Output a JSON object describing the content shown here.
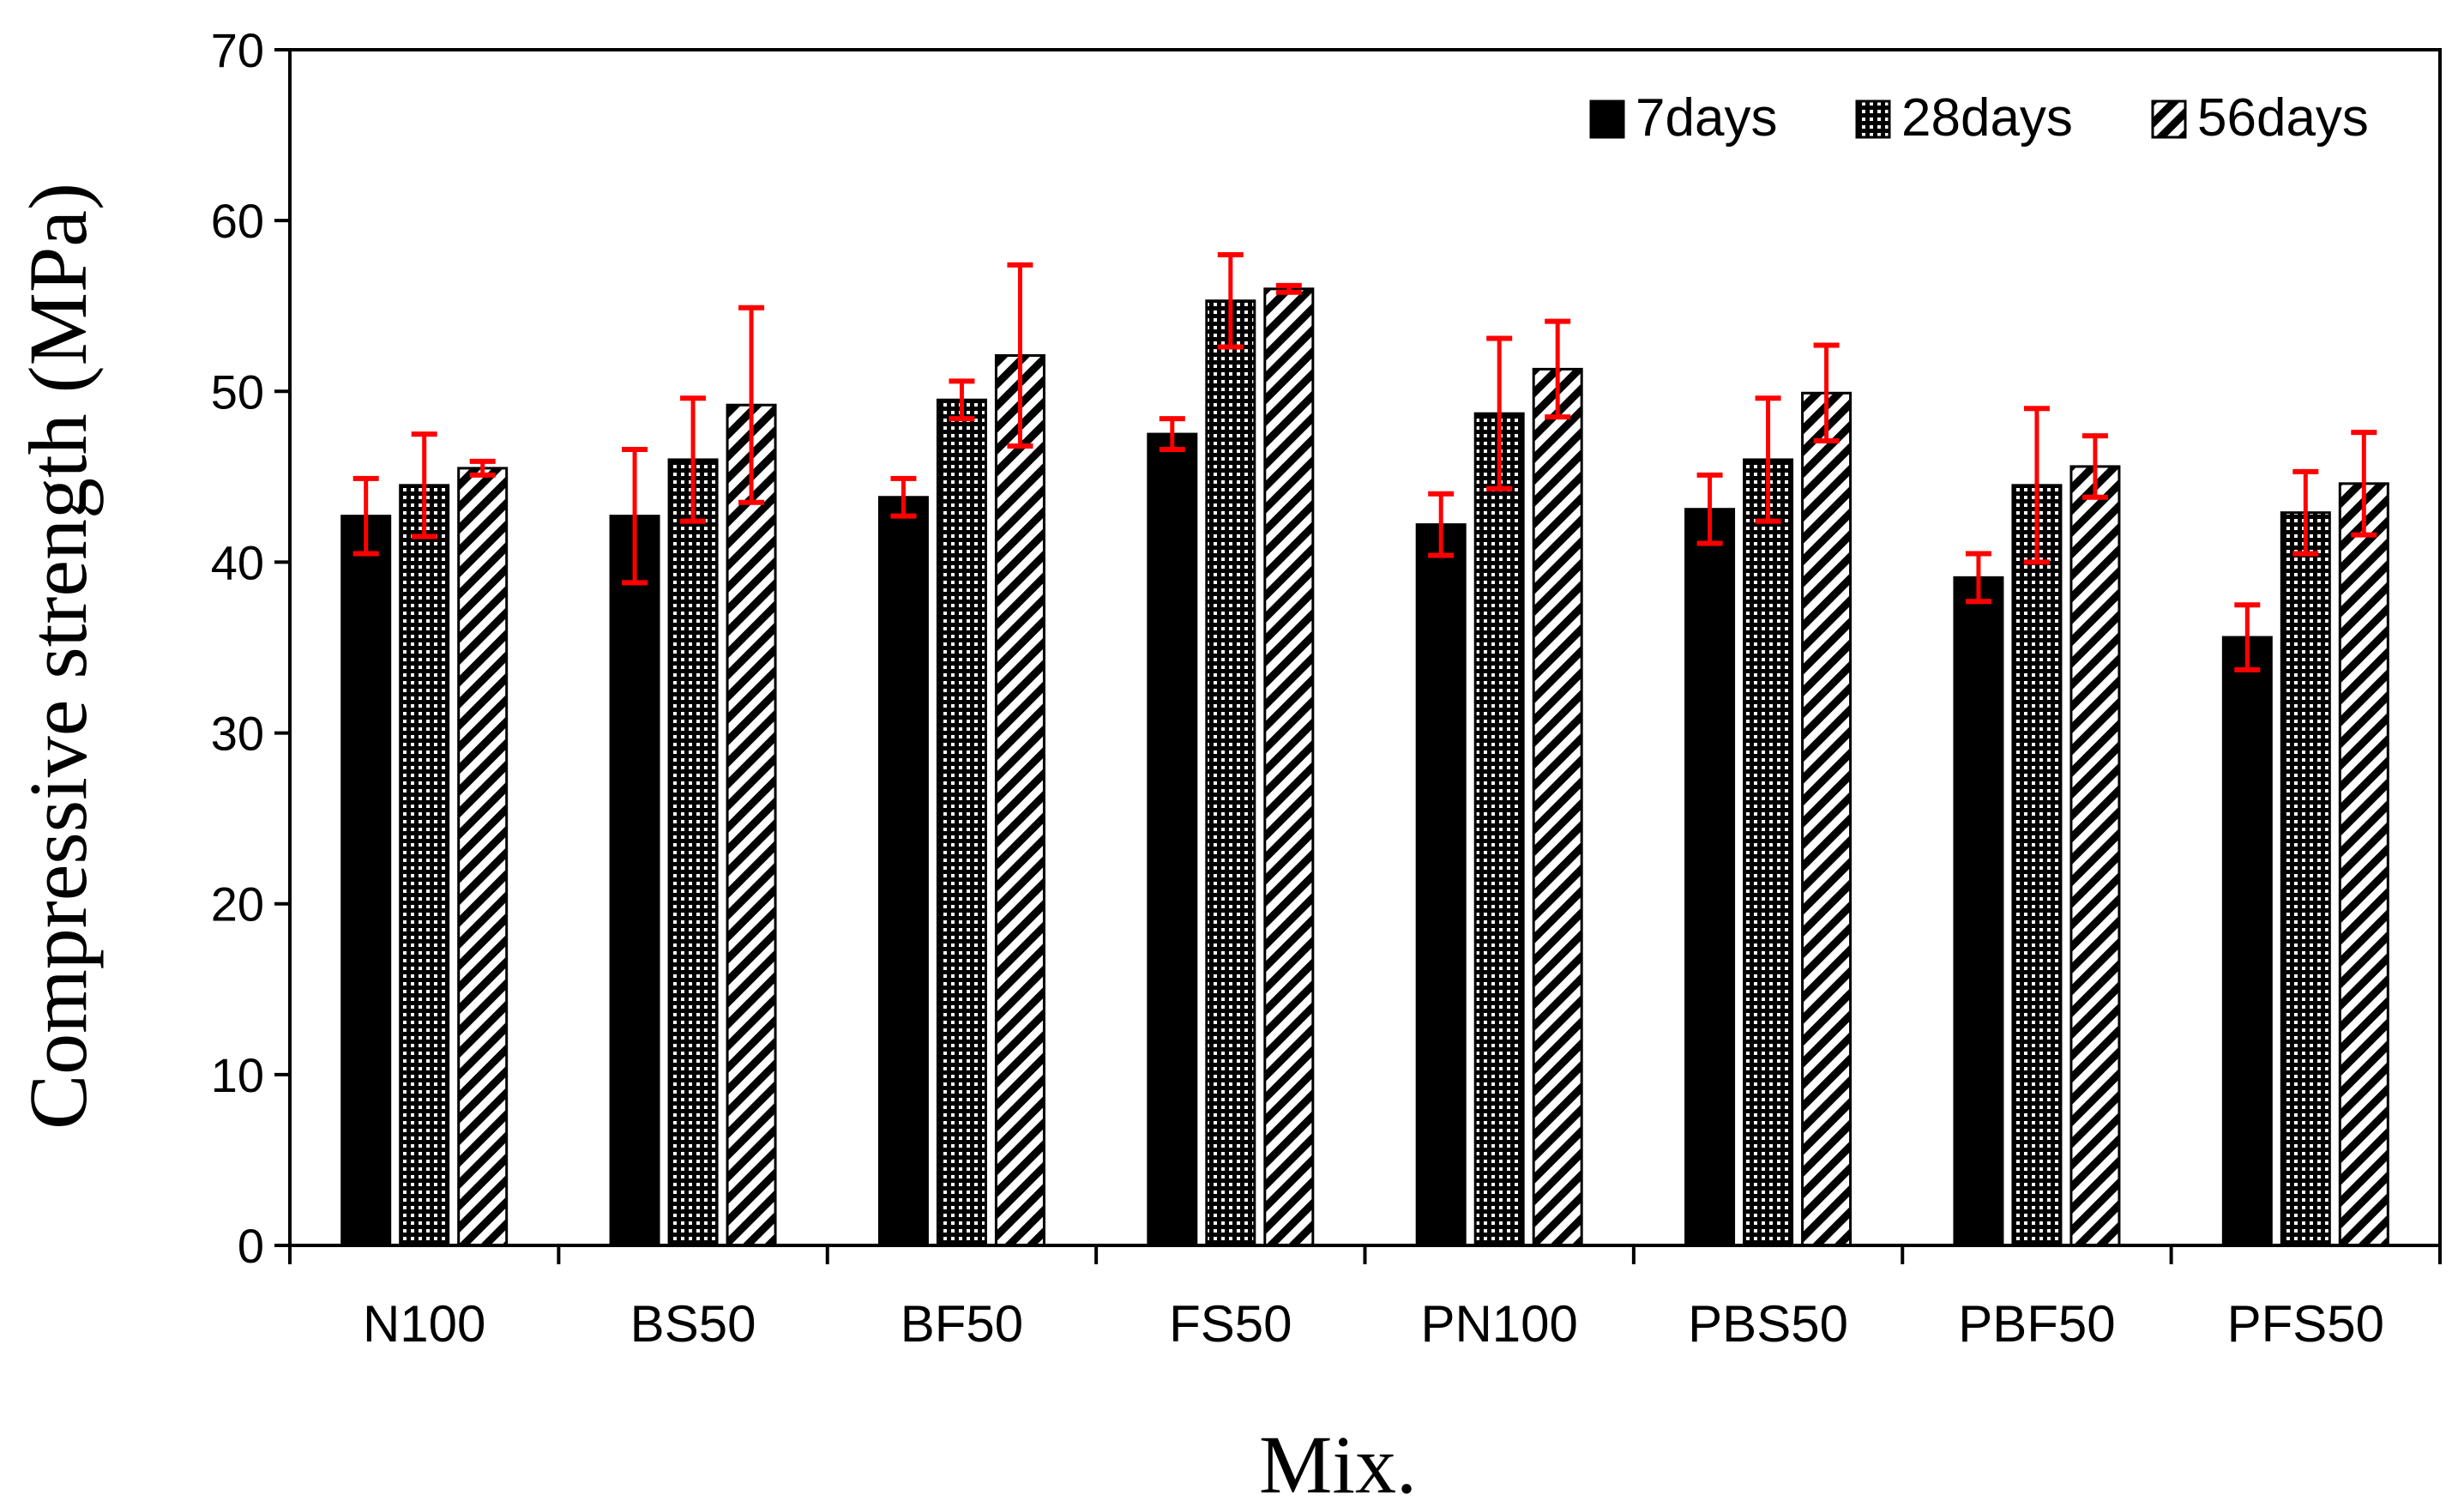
{
  "chart_data": {
    "type": "bar",
    "title": "",
    "xlabel": "Mix.",
    "ylabel": "Compressive strength (MPa)",
    "ylim": [
      0,
      70
    ],
    "yticks": [
      0,
      10,
      20,
      30,
      40,
      50,
      60,
      70
    ],
    "grid": false,
    "legend_position": "top-right",
    "categories": [
      "N100",
      "BS50",
      "BF50",
      "FS50",
      "PN100",
      "PBS50",
      "PBF50",
      "PFS50"
    ],
    "series": [
      {
        "name": "7days",
        "pattern": "solid",
        "values": [
          42.7,
          42.7,
          43.8,
          47.5,
          42.2,
          43.1,
          39.1,
          35.6
        ],
        "errors": [
          2.2,
          3.9,
          1.1,
          0.9,
          1.8,
          2.0,
          1.4,
          1.9
        ]
      },
      {
        "name": "28days",
        "pattern": "dots",
        "values": [
          44.5,
          46.0,
          49.5,
          55.3,
          48.7,
          46.0,
          44.5,
          42.9
        ],
        "errors": [
          3.0,
          3.6,
          1.1,
          2.7,
          4.4,
          3.6,
          4.5,
          2.4
        ]
      },
      {
        "name": "56days",
        "pattern": "hatch",
        "values": [
          45.5,
          49.2,
          52.1,
          56.0,
          51.3,
          49.9,
          45.6,
          44.6
        ],
        "errors": [
          0.4,
          5.7,
          5.3,
          0.2,
          2.8,
          2.8,
          1.8,
          3.0
        ]
      }
    ],
    "colors": {
      "bar": "#000000",
      "error_bar": "#ff0000",
      "axis": "#000000"
    }
  }
}
